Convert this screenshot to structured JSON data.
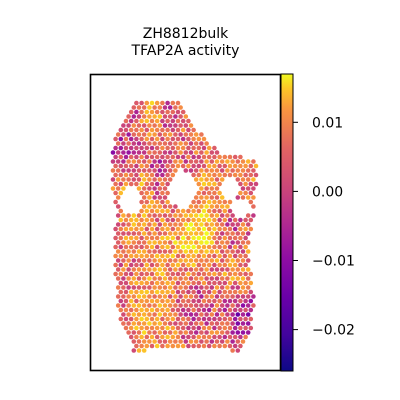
{
  "chart_data": {
    "type": "heatmap",
    "subtype": "spatial hexbin",
    "title_lines": [
      "ZH8812bulk",
      "TFAP2A activity"
    ],
    "xlabel": "",
    "ylabel": "",
    "colormap": "plasma",
    "colorbar": {
      "range": [
        -0.026,
        0.017
      ],
      "ticks": [
        0.01,
        0.0,
        -0.01,
        -0.02
      ],
      "tick_labels": [
        "0.01",
        "0.00",
        "−0.01",
        "−0.02"
      ]
    },
    "tissue_outline": [
      [
        0.22,
        0.05
      ],
      [
        0.45,
        0.06
      ],
      [
        0.55,
        0.15
      ],
      [
        0.7,
        0.25
      ],
      [
        0.92,
        0.27
      ],
      [
        0.9,
        0.45
      ],
      [
        0.86,
        0.62
      ],
      [
        0.9,
        0.78
      ],
      [
        0.88,
        0.9
      ],
      [
        0.82,
        0.97
      ],
      [
        0.55,
        0.95
      ],
      [
        0.2,
        0.97
      ],
      [
        0.12,
        0.88
      ],
      [
        0.1,
        0.78
      ],
      [
        0.08,
        0.6
      ],
      [
        0.1,
        0.45
      ],
      [
        0.06,
        0.35
      ],
      [
        0.07,
        0.22
      ],
      [
        0.14,
        0.13
      ]
    ],
    "holes": [
      {
        "cx": 0.48,
        "cy": 0.38,
        "rx": 0.08,
        "ry": 0.07
      },
      {
        "cx": 0.76,
        "cy": 0.38,
        "rx": 0.05,
        "ry": 0.04
      },
      {
        "cx": 0.82,
        "cy": 0.45,
        "rx": 0.06,
        "ry": 0.03
      },
      {
        "cx": 0.18,
        "cy": 0.42,
        "rx": 0.06,
        "ry": 0.05
      }
    ],
    "hotspots": [
      {
        "x": 0.57,
        "y": 0.55,
        "amp": 0.012,
        "s": 0.08
      },
      {
        "x": 0.3,
        "y": 0.12,
        "amp": 0.01,
        "s": 0.05
      },
      {
        "x": 0.2,
        "y": 0.4,
        "amp": 0.008,
        "s": 0.08
      },
      {
        "x": 0.65,
        "y": 0.4,
        "amp": 0.006,
        "s": 0.06
      },
      {
        "x": 0.8,
        "y": 0.72,
        "amp": 0.007,
        "s": 0.08
      },
      {
        "x": 0.3,
        "y": 0.88,
        "amp": 0.006,
        "s": 0.1
      },
      {
        "x": 0.4,
        "y": 0.65,
        "amp": 0.005,
        "s": 0.1
      },
      {
        "x": 0.9,
        "y": 0.3,
        "amp": 0.004,
        "s": 0.05
      }
    ],
    "coldspots": [
      {
        "x": 0.82,
        "y": 0.82,
        "amp": -0.014,
        "s": 0.07
      },
      {
        "x": 0.12,
        "y": 0.25,
        "amp": -0.01,
        "s": 0.06
      },
      {
        "x": 0.18,
        "y": 0.08,
        "amp": -0.008,
        "s": 0.05
      },
      {
        "x": 0.35,
        "y": 0.3,
        "amp": -0.006,
        "s": 0.08
      },
      {
        "x": 0.55,
        "y": 0.8,
        "amp": -0.006,
        "s": 0.08
      },
      {
        "x": 0.75,
        "y": 0.55,
        "amp": -0.005,
        "s": 0.06
      },
      {
        "x": 0.4,
        "y": 0.1,
        "amp": -0.008,
        "s": 0.04
      }
    ]
  }
}
